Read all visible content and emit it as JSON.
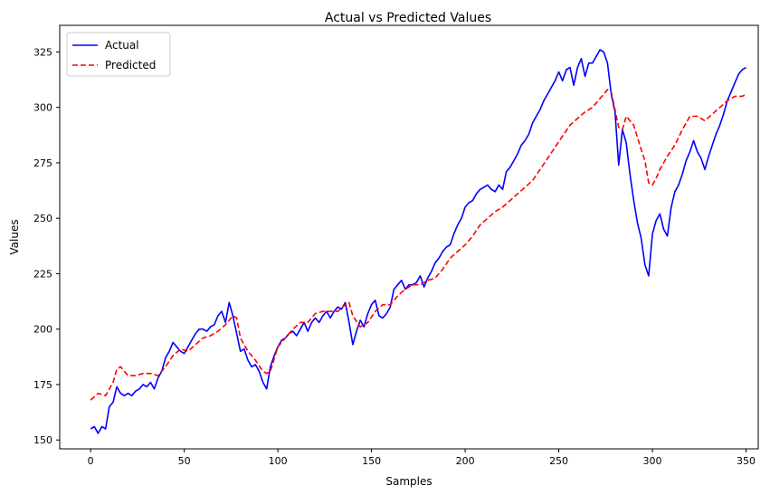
{
  "chart_data": {
    "type": "line",
    "title": "Actual vs Predicted Values",
    "xlabel": "Samples",
    "ylabel": "Values",
    "xlim": [
      -16.5,
      356.5
    ],
    "ylim": [
      146,
      337
    ],
    "xticks": [
      0,
      50,
      100,
      150,
      200,
      250,
      300,
      350
    ],
    "yticks": [
      150,
      175,
      200,
      225,
      250,
      275,
      300,
      325
    ],
    "grid": false,
    "legend_position": "upper-left",
    "series": [
      {
        "name": "Actual",
        "color": "#0000ff",
        "style": "solid",
        "points": [
          [
            0,
            155
          ],
          [
            2,
            156
          ],
          [
            4,
            153
          ],
          [
            6,
            156
          ],
          [
            8,
            155
          ],
          [
            10,
            165
          ],
          [
            12,
            167
          ],
          [
            14,
            174
          ],
          [
            16,
            171
          ],
          [
            18,
            170
          ],
          [
            20,
            171
          ],
          [
            22,
            170
          ],
          [
            24,
            172
          ],
          [
            26,
            173
          ],
          [
            28,
            175
          ],
          [
            30,
            174
          ],
          [
            32,
            176
          ],
          [
            34,
            173
          ],
          [
            36,
            178
          ],
          [
            38,
            181
          ],
          [
            40,
            187
          ],
          [
            42,
            190
          ],
          [
            44,
            194
          ],
          [
            46,
            192
          ],
          [
            48,
            190
          ],
          [
            50,
            189
          ],
          [
            52,
            192
          ],
          [
            54,
            195
          ],
          [
            56,
            198
          ],
          [
            58,
            200
          ],
          [
            60,
            200
          ],
          [
            62,
            199
          ],
          [
            64,
            201
          ],
          [
            66,
            202
          ],
          [
            68,
            206
          ],
          [
            70,
            208
          ],
          [
            72,
            203
          ],
          [
            74,
            212
          ],
          [
            76,
            206
          ],
          [
            78,
            198
          ],
          [
            80,
            190
          ],
          [
            82,
            191
          ],
          [
            84,
            186
          ],
          [
            86,
            183
          ],
          [
            88,
            184
          ],
          [
            90,
            181
          ],
          [
            92,
            176
          ],
          [
            94,
            173
          ],
          [
            96,
            183
          ],
          [
            98,
            188
          ],
          [
            100,
            192
          ],
          [
            102,
            195
          ],
          [
            104,
            196
          ],
          [
            106,
            198
          ],
          [
            108,
            199
          ],
          [
            110,
            197
          ],
          [
            112,
            200
          ],
          [
            114,
            203
          ],
          [
            116,
            199
          ],
          [
            118,
            203
          ],
          [
            120,
            205
          ],
          [
            122,
            203
          ],
          [
            124,
            206
          ],
          [
            126,
            208
          ],
          [
            128,
            205
          ],
          [
            130,
            208
          ],
          [
            132,
            210
          ],
          [
            134,
            209
          ],
          [
            136,
            212
          ],
          [
            138,
            203
          ],
          [
            140,
            193
          ],
          [
            142,
            199
          ],
          [
            144,
            204
          ],
          [
            146,
            201
          ],
          [
            148,
            207
          ],
          [
            150,
            211
          ],
          [
            152,
            213
          ],
          [
            154,
            206
          ],
          [
            156,
            205
          ],
          [
            158,
            207
          ],
          [
            160,
            210
          ],
          [
            162,
            218
          ],
          [
            164,
            220
          ],
          [
            166,
            222
          ],
          [
            168,
            218
          ],
          [
            170,
            220
          ],
          [
            172,
            220
          ],
          [
            174,
            221
          ],
          [
            176,
            224
          ],
          [
            178,
            219
          ],
          [
            180,
            223
          ],
          [
            182,
            226
          ],
          [
            184,
            230
          ],
          [
            186,
            232
          ],
          [
            188,
            235
          ],
          [
            190,
            237
          ],
          [
            192,
            238
          ],
          [
            194,
            243
          ],
          [
            196,
            247
          ],
          [
            198,
            250
          ],
          [
            200,
            255
          ],
          [
            202,
            257
          ],
          [
            204,
            258
          ],
          [
            206,
            261
          ],
          [
            208,
            263
          ],
          [
            210,
            264
          ],
          [
            212,
            265
          ],
          [
            214,
            263
          ],
          [
            216,
            262
          ],
          [
            218,
            265
          ],
          [
            220,
            263
          ],
          [
            222,
            271
          ],
          [
            224,
            273
          ],
          [
            226,
            276
          ],
          [
            228,
            279
          ],
          [
            230,
            283
          ],
          [
            232,
            285
          ],
          [
            234,
            288
          ],
          [
            236,
            293
          ],
          [
            238,
            296
          ],
          [
            240,
            299
          ],
          [
            242,
            303
          ],
          [
            244,
            306
          ],
          [
            246,
            309
          ],
          [
            248,
            312
          ],
          [
            250,
            316
          ],
          [
            252,
            312
          ],
          [
            254,
            317
          ],
          [
            256,
            318
          ],
          [
            258,
            310
          ],
          [
            260,
            318
          ],
          [
            262,
            322
          ],
          [
            264,
            314
          ],
          [
            266,
            320
          ],
          [
            268,
            320
          ],
          [
            270,
            323
          ],
          [
            272,
            326
          ],
          [
            274,
            325
          ],
          [
            276,
            320
          ],
          [
            278,
            306
          ],
          [
            280,
            298
          ],
          [
            282,
            274
          ],
          [
            284,
            290
          ],
          [
            286,
            284
          ],
          [
            288,
            270
          ],
          [
            290,
            258
          ],
          [
            292,
            248
          ],
          [
            294,
            241
          ],
          [
            296,
            229
          ],
          [
            298,
            224
          ],
          [
            300,
            243
          ],
          [
            302,
            249
          ],
          [
            304,
            252
          ],
          [
            306,
            245
          ],
          [
            308,
            242
          ],
          [
            310,
            255
          ],
          [
            312,
            262
          ],
          [
            314,
            265
          ],
          [
            316,
            270
          ],
          [
            318,
            276
          ],
          [
            320,
            280
          ],
          [
            322,
            285
          ],
          [
            324,
            280
          ],
          [
            326,
            277
          ],
          [
            328,
            272
          ],
          [
            330,
            278
          ],
          [
            332,
            283
          ],
          [
            334,
            288
          ],
          [
            336,
            292
          ],
          [
            338,
            297
          ],
          [
            340,
            303
          ],
          [
            342,
            307
          ],
          [
            344,
            311
          ],
          [
            346,
            315
          ],
          [
            348,
            317
          ],
          [
            350,
            318
          ]
        ]
      },
      {
        "name": "Predicted",
        "color": "#ff0000",
        "style": "dashed",
        "points": [
          [
            0,
            168
          ],
          [
            4,
            171
          ],
          [
            8,
            170
          ],
          [
            12,
            176
          ],
          [
            14,
            182
          ],
          [
            16,
            183
          ],
          [
            20,
            179
          ],
          [
            24,
            179
          ],
          [
            28,
            180
          ],
          [
            32,
            180
          ],
          [
            36,
            179
          ],
          [
            40,
            183
          ],
          [
            44,
            188
          ],
          [
            48,
            191
          ],
          [
            52,
            190
          ],
          [
            56,
            193
          ],
          [
            60,
            196
          ],
          [
            64,
            197
          ],
          [
            68,
            199
          ],
          [
            72,
            202
          ],
          [
            76,
            206
          ],
          [
            78,
            205
          ],
          [
            80,
            196
          ],
          [
            84,
            190
          ],
          [
            88,
            186
          ],
          [
            92,
            181
          ],
          [
            94,
            180
          ],
          [
            96,
            181
          ],
          [
            100,
            192
          ],
          [
            104,
            196
          ],
          [
            108,
            200
          ],
          [
            112,
            203
          ],
          [
            116,
            203
          ],
          [
            120,
            207
          ],
          [
            124,
            208
          ],
          [
            128,
            208
          ],
          [
            132,
            208
          ],
          [
            136,
            211
          ],
          [
            138,
            212
          ],
          [
            140,
            206
          ],
          [
            144,
            201
          ],
          [
            148,
            203
          ],
          [
            152,
            208
          ],
          [
            156,
            211
          ],
          [
            160,
            211
          ],
          [
            164,
            215
          ],
          [
            168,
            218
          ],
          [
            172,
            220
          ],
          [
            176,
            220
          ],
          [
            180,
            222
          ],
          [
            184,
            223
          ],
          [
            188,
            227
          ],
          [
            192,
            232
          ],
          [
            196,
            235
          ],
          [
            200,
            238
          ],
          [
            204,
            242
          ],
          [
            208,
            247
          ],
          [
            212,
            250
          ],
          [
            216,
            253
          ],
          [
            220,
            255
          ],
          [
            224,
            258
          ],
          [
            228,
            261
          ],
          [
            232,
            264
          ],
          [
            236,
            267
          ],
          [
            240,
            272
          ],
          [
            244,
            277
          ],
          [
            248,
            282
          ],
          [
            252,
            287
          ],
          [
            256,
            292
          ],
          [
            260,
            295
          ],
          [
            264,
            298
          ],
          [
            268,
            300
          ],
          [
            272,
            304
          ],
          [
            276,
            308
          ],
          [
            278,
            307
          ],
          [
            280,
            299
          ],
          [
            282,
            291
          ],
          [
            284,
            290
          ],
          [
            286,
            296
          ],
          [
            290,
            292
          ],
          [
            294,
            281
          ],
          [
            296,
            276
          ],
          [
            298,
            266
          ],
          [
            300,
            265
          ],
          [
            302,
            268
          ],
          [
            304,
            272
          ],
          [
            308,
            278
          ],
          [
            312,
            283
          ],
          [
            316,
            290
          ],
          [
            320,
            296
          ],
          [
            324,
            296
          ],
          [
            328,
            294
          ],
          [
            332,
            297
          ],
          [
            336,
            300
          ],
          [
            340,
            303
          ],
          [
            344,
            305
          ],
          [
            348,
            305
          ],
          [
            350,
            306
          ]
        ]
      }
    ]
  }
}
